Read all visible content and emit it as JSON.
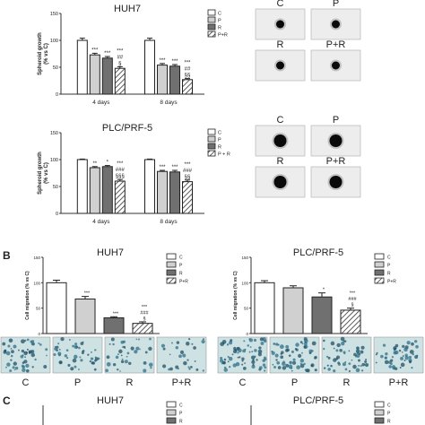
{
  "panel_letters": {
    "b": "B",
    "c": "C"
  },
  "chart_data": [
    {
      "id": "a1",
      "type": "bar",
      "title": "HUH7",
      "ylabel": "Spheroid growth\n(% vs C)",
      "ylim": [
        0,
        150
      ],
      "yticks": [
        "0",
        "50",
        "100",
        "150"
      ],
      "groups": [
        "4 days",
        "8 days"
      ],
      "series": [
        {
          "name": "C",
          "values": [
            100,
            100
          ],
          "err": [
            4,
            4
          ]
        },
        {
          "name": "P",
          "values": [
            73,
            54
          ],
          "err": [
            3,
            3
          ]
        },
        {
          "name": "R",
          "values": [
            67,
            52
          ],
          "err": [
            3,
            3
          ]
        },
        {
          "name": "P+R",
          "values": [
            48,
            27
          ],
          "err": [
            3,
            2
          ]
        }
      ],
      "annotations": [
        [
          "",
          "***",
          "***",
          "***\n##\n§"
        ],
        [
          "",
          "***",
          "***",
          "***\n##\n§§"
        ]
      ]
    },
    {
      "id": "a2",
      "type": "bar",
      "title": "PLC/PRF-5",
      "ylabel": "Spheroid growth\n(% vs C)",
      "ylim": [
        0,
        150
      ],
      "yticks": [
        "0",
        "50",
        "100",
        "150"
      ],
      "groups": [
        "4 days",
        "8 days"
      ],
      "series": [
        {
          "name": "C",
          "values": [
            100,
            100
          ],
          "err": [
            1,
            1
          ]
        },
        {
          "name": "P",
          "values": [
            85,
            78
          ],
          "err": [
            2,
            2
          ]
        },
        {
          "name": "R",
          "values": [
            87,
            77
          ],
          "err": [
            2,
            3
          ]
        },
        {
          "name": "P + R",
          "values": [
            60,
            59
          ],
          "err": [
            3,
            3
          ]
        }
      ],
      "annotations": [
        [
          "",
          "**",
          "*",
          "***\n###\n§§§"
        ],
        [
          "",
          "***",
          "***",
          "***\n###\n§§"
        ]
      ]
    },
    {
      "id": "b1",
      "type": "bar",
      "title": "HUH7",
      "ylabel": "Cell migration (% vs C)",
      "ylim": [
        0,
        150
      ],
      "yticks": [
        "0",
        "50",
        "100",
        "150"
      ],
      "categories": [
        "C",
        "P",
        "R",
        "P+R"
      ],
      "values": [
        100,
        68,
        31,
        20
      ],
      "err": [
        5,
        5,
        2,
        3
      ],
      "annotations": [
        "",
        "***",
        "***",
        "***\n###\n§"
      ],
      "legend": [
        "C",
        "P",
        "R",
        "P+R"
      ]
    },
    {
      "id": "b2",
      "type": "bar",
      "title": "PLC/PRF-5",
      "ylabel": "Cell migration (% vs C)",
      "ylim": [
        0,
        150
      ],
      "yticks": [
        "0",
        "50",
        "100",
        "150"
      ],
      "categories": [
        "C",
        "P",
        "R",
        "P+R"
      ],
      "values": [
        100,
        90,
        72,
        46
      ],
      "err": [
        4,
        4,
        8,
        4
      ],
      "annotations": [
        "",
        "",
        "*",
        "***\n###\n§"
      ],
      "legend": [
        "C",
        "P",
        "R",
        "P+R"
      ]
    },
    {
      "id": "c1",
      "type": "bar",
      "title": "HUH7",
      "ylabel": "",
      "legend": [
        "C",
        "P",
        "R",
        "P+R"
      ]
    },
    {
      "id": "c2",
      "type": "bar",
      "title": "PLC/PRF-5",
      "ylabel": "",
      "legend": [
        "C",
        "P",
        "R",
        "P+R"
      ]
    }
  ],
  "spheroid_photos": {
    "huh7": [
      {
        "label": "C"
      },
      {
        "label": "P"
      },
      {
        "label": "R"
      },
      {
        "label": "P+R"
      }
    ],
    "plc": [
      {
        "label": "C"
      },
      {
        "label": "P"
      },
      {
        "label": "R"
      },
      {
        "label": "P+R"
      }
    ]
  },
  "migration_photos": {
    "huh7": [
      {
        "label": "C"
      },
      {
        "label": "P"
      },
      {
        "label": "R"
      },
      {
        "label": "P+R"
      }
    ],
    "plc": [
      {
        "label": "C"
      },
      {
        "label": "P"
      },
      {
        "label": "R"
      },
      {
        "label": "P+R"
      }
    ]
  },
  "colors": {
    "C": "#ffffff",
    "P": "#d0d0d0",
    "R": "#707070",
    "PR": "hatch",
    "stain": "#2e6f88",
    "stain_bg": "#cfe2e3"
  }
}
